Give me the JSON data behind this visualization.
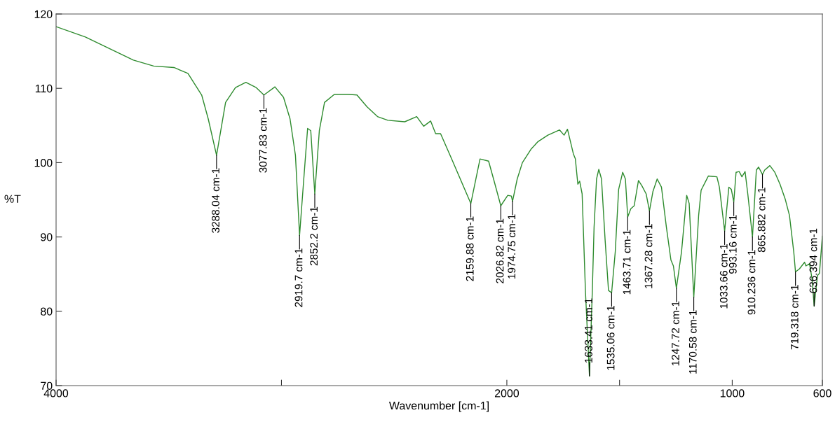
{
  "chart_data": {
    "type": "line",
    "xlabel": "Wavenumber [cm-1]",
    "ylabel": "%T",
    "xlim": [
      4000,
      600
    ],
    "ylim": [
      70,
      120
    ],
    "xticks": [
      4000,
      {
        "value": 3000,
        "label": null
      },
      2000,
      {
        "value": 1500,
        "label": null
      },
      1000,
      600
    ],
    "yticks": [
      70,
      80,
      90,
      100,
      110,
      120
    ],
    "grid": false,
    "legend": false,
    "series": [
      {
        "color": "#2e8b2e",
        "x": [
          4000,
          3870,
          3657,
          3567,
          3477,
          3415,
          3354,
          3325,
          3288.04,
          3248,
          3204,
          3158,
          3112,
          3077.83,
          3029,
          2991,
          2962,
          2938,
          2919.7,
          2901,
          2884,
          2870,
          2852.2,
          2832,
          2809,
          2765,
          2703,
          2665,
          2620,
          2574,
          2528,
          2453,
          2400,
          2369,
          2338,
          2316,
          2294,
          2242,
          2159.88,
          2119,
          2081,
          2059,
          2026.82,
          1996,
          1980,
          1974.75,
          1954,
          1931,
          1893,
          1863,
          1818,
          1766,
          1746,
          1731,
          1705,
          1696,
          1685,
          1677,
          1666,
          1651,
          1633.41,
          1621,
          1613,
          1602,
          1592,
          1580,
          1564,
          1549,
          1535.06,
          1519,
          1504,
          1486,
          1474,
          1463.71,
          1450,
          1435,
          1416,
          1401,
          1382,
          1367.28,
          1352,
          1333,
          1314,
          1292,
          1272,
          1261,
          1247.72,
          1225,
          1202,
          1191,
          1170.58,
          1149,
          1138,
          1116,
          1106,
          1068,
          1057,
          1033.66,
          1015,
          1004,
          993.16,
          983,
          969,
          957,
          943,
          931,
          910.236,
          893,
          883,
          865.882,
          856,
          833,
          811,
          788,
          765,
          746,
          727,
          719.318,
          702,
          679,
          673,
          657,
          646,
          636.394,
          622,
          613,
          600
        ],
        "values": [
          118.3,
          116.9,
          113.8,
          113.0,
          112.8,
          112.0,
          109.1,
          105.9,
          101.0,
          108.1,
          110.1,
          110.8,
          110.1,
          109.1,
          110.2,
          108.8,
          105.9,
          101.0,
          90.2,
          97.8,
          104.6,
          104.3,
          95.8,
          104.3,
          108.1,
          109.2,
          109.2,
          109.1,
          107.5,
          106.2,
          105.7,
          105.5,
          106.2,
          104.9,
          105.6,
          103.9,
          103.9,
          100.3,
          94.5,
          100.5,
          100.2,
          97.8,
          94.2,
          95.6,
          95.5,
          94.8,
          97.8,
          100.0,
          101.8,
          102.8,
          103.7,
          104.4,
          103.7,
          104.5,
          101.2,
          100.5,
          97.1,
          97.5,
          95.8,
          82.5,
          71.3,
          82.5,
          91.3,
          97.8,
          99.1,
          97.8,
          89.6,
          82.8,
          82.5,
          88.0,
          96.4,
          98.7,
          97.8,
          92.7,
          93.8,
          94.2,
          97.6,
          96.9,
          95.8,
          93.5,
          96.1,
          97.8,
          96.7,
          91.3,
          86.9,
          86.1,
          83.1,
          88.0,
          95.6,
          94.5,
          81.9,
          92.9,
          96.3,
          97.6,
          98.2,
          98.1,
          96.7,
          90.8,
          96.7,
          96.4,
          94.7,
          98.7,
          98.8,
          98.1,
          98.8,
          95.8,
          90.0,
          99.0,
          99.4,
          98.4,
          99.0,
          99.6,
          98.7,
          97.1,
          95.1,
          92.9,
          88.0,
          85.3,
          85.7,
          86.6,
          86.1,
          86.4,
          84.4,
          80.7,
          84.8,
          85.1,
          90.1
        ]
      }
    ],
    "annotations": [
      {
        "text": "3288.04 cm-1",
        "x": 3288.04,
        "y": 101.0
      },
      {
        "text": "3077.83 cm-1",
        "x": 3077.83,
        "y": 109.1
      },
      {
        "text": "2919.7 cm-1",
        "x": 2919.7,
        "y": 90.2
      },
      {
        "text": "2852.2 cm-1",
        "x": 2852.2,
        "y": 95.8
      },
      {
        "text": "2159.88 cm-1",
        "x": 2159.88,
        "y": 94.5
      },
      {
        "text": "2026.82 cm-1",
        "x": 2026.82,
        "y": 94.2
      },
      {
        "text": "1974.75 cm-1",
        "x": 1974.75,
        "y": 94.8
      },
      {
        "text": "1633.41 cm-1",
        "x": 1633.41,
        "y": 71.3
      },
      {
        "text": "1535.06 cm-1",
        "x": 1535.06,
        "y": 82.5
      },
      {
        "text": "1463.71 cm-1",
        "x": 1463.71,
        "y": 92.7
      },
      {
        "text": "1367.28 cm-1",
        "x": 1367.28,
        "y": 93.5
      },
      {
        "text": "1247.72 cm-1",
        "x": 1247.72,
        "y": 83.1
      },
      {
        "text": "1170.58 cm-1",
        "x": 1170.58,
        "y": 81.9
      },
      {
        "text": "1033.66 cm-1",
        "x": 1033.66,
        "y": 90.8
      },
      {
        "text": "993.16 cm-1",
        "x": 993.16,
        "y": 94.7
      },
      {
        "text": "910.236 cm-1",
        "x": 910.236,
        "y": 90.0
      },
      {
        "text": "865.882 cm-1",
        "x": 865.882,
        "y": 98.4
      },
      {
        "text": "719.318 cm-1",
        "x": 719.318,
        "y": 85.3
      },
      {
        "text": "636.394 cm-1",
        "x": 636.394,
        "y": 80.7
      }
    ]
  }
}
